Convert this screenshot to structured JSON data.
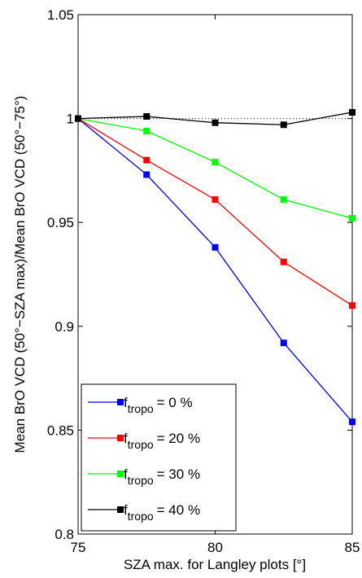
{
  "chart_data": {
    "type": "line",
    "xlabel": "SZA max. for Langley plots [°]",
    "ylabel": "Mean BrO VCD (50°−SZA max)/Mean BrO VCD (50°−75°)",
    "x": [
      75,
      77.5,
      80,
      82.5,
      85
    ],
    "xlim": [
      75,
      85
    ],
    "xticks": [
      75,
      80,
      85
    ],
    "ylim": [
      0.8,
      1.05
    ],
    "yticks": [
      0.8,
      0.85,
      0.9,
      0.95,
      1,
      1.05
    ],
    "legend_symbol": {
      "base": "f",
      "sub": "tropo"
    },
    "legend": "lower left",
    "series": [
      {
        "name": "= 0 %",
        "color": "#0000ff",
        "values": [
          1.0,
          0.973,
          0.938,
          0.892,
          0.854
        ]
      },
      {
        "name": "= 20 %",
        "color": "#ff0000",
        "values": [
          1.0,
          0.98,
          0.961,
          0.931,
          0.91
        ]
      },
      {
        "name": "= 30 %",
        "color": "#00ff00",
        "values": [
          1.0,
          0.994,
          0.979,
          0.961,
          0.952
        ]
      },
      {
        "name": "= 40 %",
        "color": "#000000",
        "values": [
          1.0,
          1.001,
          0.998,
          0.997,
          1.003
        ]
      }
    ]
  }
}
